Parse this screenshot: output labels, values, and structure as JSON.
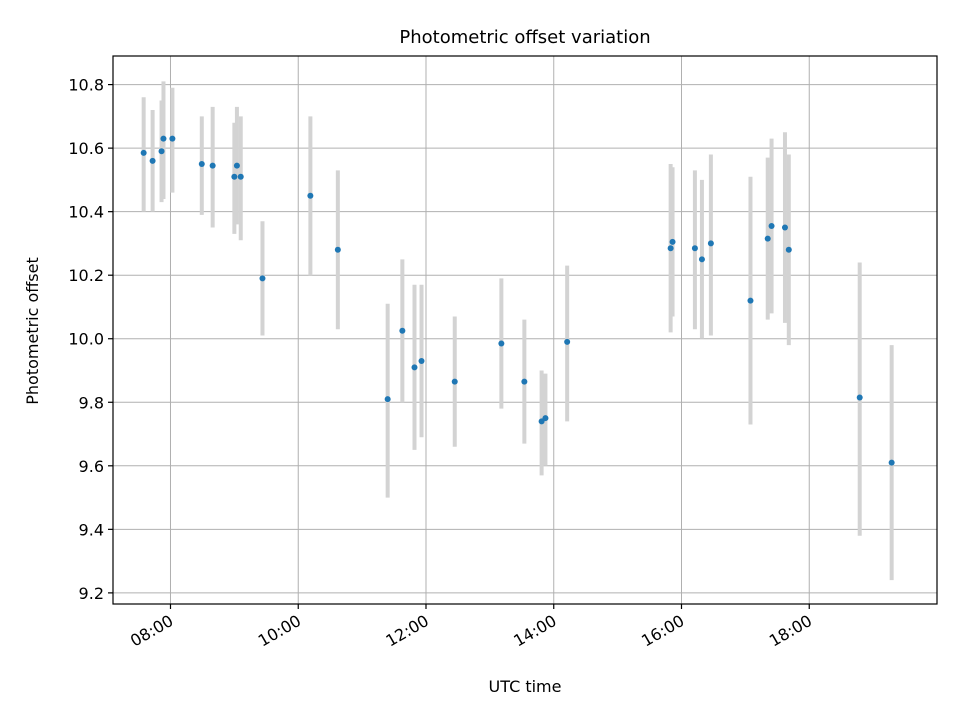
{
  "chart_data": {
    "type": "scatter",
    "title": "Photometric offset variation",
    "xlabel": "UTC time",
    "ylabel": "Photometric offset",
    "grid": true,
    "colors": {
      "point": "#1f77b4",
      "errorbar": "#d3d3d3"
    },
    "x_unit": "hours",
    "xlim": [
      7.1,
      20.0
    ],
    "ylim": [
      9.165,
      10.89
    ],
    "x_ticks": [
      {
        "value": 8,
        "label": "08:00"
      },
      {
        "value": 10,
        "label": "10:00"
      },
      {
        "value": 12,
        "label": "12:00"
      },
      {
        "value": 14,
        "label": "14:00"
      },
      {
        "value": 16,
        "label": "16:00"
      },
      {
        "value": 18,
        "label": "18:00"
      }
    ],
    "y_ticks": [
      {
        "value": 9.2,
        "label": "9.2"
      },
      {
        "value": 9.4,
        "label": "9.4"
      },
      {
        "value": 9.6,
        "label": "9.6"
      },
      {
        "value": 9.8,
        "label": "9.8"
      },
      {
        "value": 10.0,
        "label": "10.0"
      },
      {
        "value": 10.2,
        "label": "10.2"
      },
      {
        "value": 10.4,
        "label": "10.4"
      },
      {
        "value": 10.6,
        "label": "10.6"
      },
      {
        "value": 10.8,
        "label": "10.8"
      }
    ],
    "points": [
      {
        "x": 7.58,
        "y": 10.585,
        "lo": 10.4,
        "hi": 10.76
      },
      {
        "x": 7.72,
        "y": 10.56,
        "lo": 10.4,
        "hi": 10.72
      },
      {
        "x": 7.86,
        "y": 10.59,
        "lo": 10.43,
        "hi": 10.75
      },
      {
        "x": 7.89,
        "y": 10.63,
        "lo": 10.44,
        "hi": 10.81
      },
      {
        "x": 8.03,
        "y": 10.63,
        "lo": 10.46,
        "hi": 10.79
      },
      {
        "x": 8.49,
        "y": 10.55,
        "lo": 10.39,
        "hi": 10.7
      },
      {
        "x": 8.66,
        "y": 10.545,
        "lo": 10.35,
        "hi": 10.73
      },
      {
        "x": 9.0,
        "y": 10.51,
        "lo": 10.33,
        "hi": 10.68
      },
      {
        "x": 9.04,
        "y": 10.545,
        "lo": 10.36,
        "hi": 10.73
      },
      {
        "x": 9.1,
        "y": 10.51,
        "lo": 10.31,
        "hi": 10.7
      },
      {
        "x": 9.44,
        "y": 10.19,
        "lo": 10.01,
        "hi": 10.37
      },
      {
        "x": 10.19,
        "y": 10.45,
        "lo": 10.2,
        "hi": 10.7
      },
      {
        "x": 10.62,
        "y": 10.28,
        "lo": 10.03,
        "hi": 10.53
      },
      {
        "x": 11.4,
        "y": 9.81,
        "lo": 9.5,
        "hi": 10.11
      },
      {
        "x": 11.63,
        "y": 10.025,
        "lo": 9.8,
        "hi": 10.25
      },
      {
        "x": 11.82,
        "y": 9.91,
        "lo": 9.65,
        "hi": 10.17
      },
      {
        "x": 11.93,
        "y": 9.93,
        "lo": 9.69,
        "hi": 10.17
      },
      {
        "x": 12.45,
        "y": 9.865,
        "lo": 9.66,
        "hi": 10.07
      },
      {
        "x": 13.18,
        "y": 9.985,
        "lo": 9.78,
        "hi": 10.19
      },
      {
        "x": 13.54,
        "y": 9.865,
        "lo": 9.67,
        "hi": 10.06
      },
      {
        "x": 13.81,
        "y": 9.74,
        "lo": 9.57,
        "hi": 9.9
      },
      {
        "x": 13.87,
        "y": 9.75,
        "lo": 9.6,
        "hi": 9.89
      },
      {
        "x": 14.21,
        "y": 9.99,
        "lo": 9.74,
        "hi": 10.23
      },
      {
        "x": 15.83,
        "y": 10.285,
        "lo": 10.02,
        "hi": 10.55
      },
      {
        "x": 15.86,
        "y": 10.305,
        "lo": 10.07,
        "hi": 10.54
      },
      {
        "x": 16.21,
        "y": 10.285,
        "lo": 10.03,
        "hi": 10.53
      },
      {
        "x": 16.32,
        "y": 10.25,
        "lo": 10.0,
        "hi": 10.5
      },
      {
        "x": 16.46,
        "y": 10.3,
        "lo": 10.01,
        "hi": 10.58
      },
      {
        "x": 17.08,
        "y": 10.12,
        "lo": 9.73,
        "hi": 10.51
      },
      {
        "x": 17.35,
        "y": 10.315,
        "lo": 10.06,
        "hi": 10.57
      },
      {
        "x": 17.41,
        "y": 10.355,
        "lo": 10.08,
        "hi": 10.63
      },
      {
        "x": 17.62,
        "y": 10.35,
        "lo": 10.05,
        "hi": 10.65
      },
      {
        "x": 17.68,
        "y": 10.28,
        "lo": 9.98,
        "hi": 10.58
      },
      {
        "x": 18.79,
        "y": 9.815,
        "lo": 9.38,
        "hi": 10.24
      },
      {
        "x": 19.29,
        "y": 9.61,
        "lo": 9.24,
        "hi": 9.98
      }
    ]
  }
}
